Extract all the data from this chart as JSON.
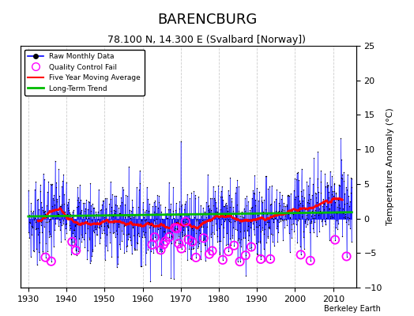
{
  "title": "BARENCBURG",
  "subtitle": "78.100 N, 14.300 E (Svalbard [Norway])",
  "credit": "Berkeley Earth",
  "ylabel": "Temperature Anomaly (°C)",
  "xlim": [
    1928,
    2016
  ],
  "ylim": [
    -10,
    25
  ],
  "yticks_right": [
    -10,
    -5,
    0,
    5,
    10,
    15,
    20,
    25
  ],
  "xticks": [
    1930,
    1940,
    1950,
    1960,
    1970,
    1980,
    1990,
    2000,
    2010
  ],
  "year_start": 1930,
  "year_end": 2014,
  "raw_color": "#0000ff",
  "ma_color": "#ff0000",
  "trend_color": "#00bb00",
  "qc_color": "#ff00ff",
  "bg_color": "#ffffff",
  "grid_color": "#cccccc",
  "title_fontsize": 13,
  "subtitle_fontsize": 9,
  "tick_fontsize": 8,
  "ylabel_fontsize": 8
}
